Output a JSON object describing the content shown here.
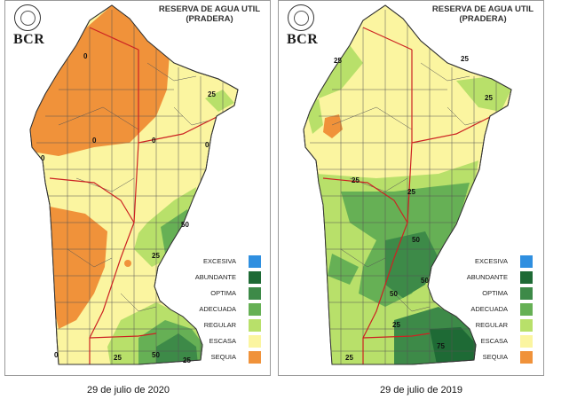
{
  "maps": [
    {
      "logo": "BCR",
      "title_line1": "RESERVA DE AGUA UTIL",
      "title_line2": "(PRADERA)",
      "caption": "29 de julio de 2020",
      "contour_labels": [
        "0",
        "0",
        "0",
        "0",
        "0",
        "25",
        "50",
        "25",
        "25",
        "50",
        "0",
        "25"
      ]
    },
    {
      "logo": "BCR",
      "title_line1": "RESERVA DE AGUA UTIL",
      "title_line2": "(PRADERA)",
      "caption": "29 de julio de 2019",
      "contour_labels": [
        "25",
        "25",
        "25",
        "25",
        "25",
        "50",
        "50",
        "50",
        "25",
        "75",
        "25"
      ]
    }
  ],
  "legend": [
    {
      "label": "EXCESIVA",
      "color": "#2f8fe0"
    },
    {
      "label": "ABUNDANTE",
      "color": "#1e6a35"
    },
    {
      "label": "OPTIMA",
      "color": "#3d8a48"
    },
    {
      "label": "ADECUADA",
      "color": "#66b055"
    },
    {
      "label": "REGULAR",
      "color": "#b8e06a"
    },
    {
      "label": "ESCASA",
      "color": "#fbf5a0"
    },
    {
      "label": "SEQUIA",
      "color": "#f0923a"
    }
  ]
}
